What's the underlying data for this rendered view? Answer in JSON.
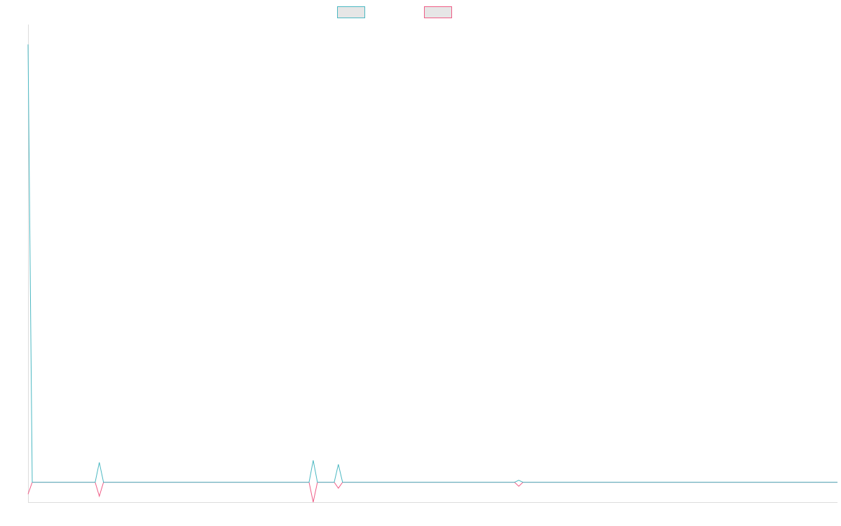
{
  "chart_data": {
    "type": "line",
    "title": "",
    "xlabel": "",
    "ylabel": "",
    "grid": false,
    "legend": "top-center",
    "x": [
      0,
      1,
      16,
      17,
      18,
      67,
      68,
      69,
      72,
      73,
      74,
      75,
      116,
      117,
      118,
      193
    ],
    "xlim": [
      0,
      193
    ],
    "ylim": [
      -1,
      23
    ],
    "series": [
      {
        "name": "",
        "color": "#4bb8c2",
        "values": [
          22,
          0,
          0,
          1,
          0,
          0,
          1.1,
          0,
          0,
          0,
          0.9,
          0,
          0,
          0.1,
          0,
          0
        ]
      },
      {
        "name": "",
        "color": "#ef5c86",
        "values": [
          -0.6,
          0,
          0,
          -0.7,
          0,
          0,
          -1,
          0,
          0,
          0,
          -0.3,
          0,
          0,
          -0.2,
          0,
          0
        ]
      }
    ]
  }
}
